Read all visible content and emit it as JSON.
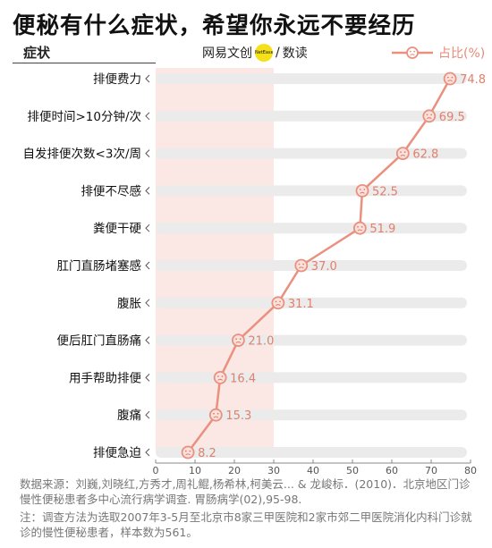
{
  "title": "便秘有什么症状，希望你永远不要经历",
  "column_label": "症状",
  "brand": {
    "name": "网易文创",
    "logo_text": "NetEase",
    "sep": "/",
    "sub": "数读"
  },
  "legend_label": "占比(%)",
  "colors": {
    "line": "#e9907e",
    "band": "#fbe7e4",
    "track": "#ebebeb",
    "value": "#e17f6c",
    "axis": "#888888"
  },
  "chart_data": {
    "type": "line",
    "categories": [
      "排便费力",
      "排便时间>10分钟/次",
      "自发排便次数<3次/周",
      "排便不尽感",
      "粪便干硬",
      "肛门直肠堵塞感",
      "腹胀",
      "便后肛门直肠痛",
      "用手帮助排便",
      "腹痛",
      "排便急迫"
    ],
    "series": [
      {
        "name": "占比(%)",
        "values": [
          74.8,
          69.5,
          62.8,
          52.5,
          51.9,
          37.0,
          31.1,
          21.0,
          16.4,
          15.3,
          8.2
        ]
      }
    ],
    "value_labels": [
      "74.8",
      "69.5",
      "62.8",
      "52.5",
      "51.9",
      "37.0",
      "31.1",
      "21.0",
      "16.4",
      "15.3",
      "8.2"
    ],
    "xlim": [
      0,
      80
    ],
    "xticks": [
      "0",
      "10",
      "20",
      "30",
      "40",
      "50",
      "60",
      "70",
      "80"
    ],
    "tick_values": [
      0,
      10,
      20,
      30,
      40,
      50,
      60,
      70,
      80
    ],
    "legend": "top-right",
    "marker": "sad-face-icon"
  },
  "source_text": "数据来源：刘巍,刘晓红,方秀才,周礼鲲,杨希林,柯美云... & 龙峻标．(2010)．北京地区门诊慢性便秘患者多中心流行病学调查. 胃肠病学(02),95-98.",
  "note_text": "注：调查方法为选取2007年3-5月至北京市8家三甲医院和2家市郊二甲医院消化内科门诊就诊的慢性便秘患者，样本数为561。"
}
